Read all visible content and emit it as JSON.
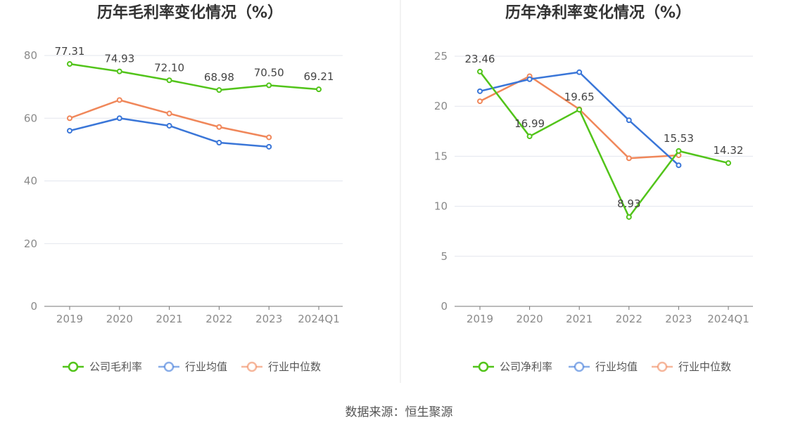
{
  "chart_data": [
    {
      "type": "line",
      "title": "历年毛利率变化情况（%）",
      "categories": [
        "2019",
        "2020",
        "2021",
        "2022",
        "2023",
        "2024Q1"
      ],
      "ylim": [
        0,
        80
      ],
      "yticks": [
        0,
        20,
        40,
        60,
        80
      ],
      "grid": true,
      "legend_position": "bottom",
      "series": [
        {
          "name": "公司毛利率",
          "color": "#52c41a",
          "values": [
            77.31,
            74.93,
            72.1,
            68.98,
            70.5,
            69.21
          ],
          "labels": [
            "77.31",
            "74.93",
            "72.10",
            "68.98",
            "70.50",
            "69.21"
          ]
        },
        {
          "name": "行业均值",
          "color": "#3a76d8",
          "values": [
            56.0,
            60.0,
            57.6,
            52.2,
            50.9,
            null
          ],
          "labels": []
        },
        {
          "name": "行业中位数",
          "color": "#f0875a",
          "values": [
            60.0,
            65.8,
            61.5,
            57.2,
            53.9,
            null
          ],
          "labels": []
        }
      ]
    },
    {
      "type": "line",
      "title": "历年净利率变化情况（%）",
      "categories": [
        "2019",
        "2020",
        "2021",
        "2022",
        "2023",
        "2024Q1"
      ],
      "ylim": [
        0,
        25
      ],
      "yticks": [
        0,
        5,
        10,
        15,
        20,
        25
      ],
      "grid": true,
      "legend_position": "bottom",
      "series": [
        {
          "name": "公司净利率",
          "color": "#52c41a",
          "values": [
            23.46,
            16.99,
            19.65,
            8.93,
            15.53,
            14.32
          ],
          "labels": [
            "23.46",
            "16.99",
            "19.65",
            "8.93",
            "15.53",
            "14.32"
          ]
        },
        {
          "name": "行业均值",
          "color": "#3a76d8",
          "values": [
            21.5,
            22.7,
            23.4,
            18.6,
            14.1,
            null
          ],
          "labels": []
        },
        {
          "name": "行业中位数",
          "color": "#f0875a",
          "values": [
            20.5,
            23.0,
            19.7,
            14.8,
            15.1,
            null
          ],
          "labels": []
        }
      ]
    }
  ],
  "source": "数据来源：恒生聚源"
}
